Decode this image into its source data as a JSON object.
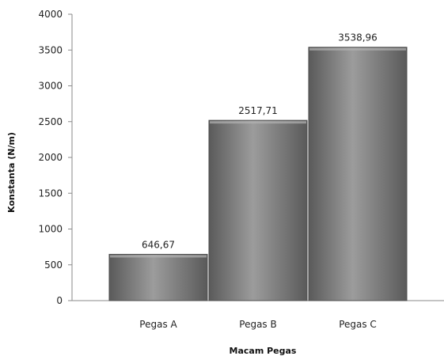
{
  "chart_data": {
    "type": "bar",
    "categories": [
      "Pegas A",
      "Pegas B",
      "Pegas C"
    ],
    "values": [
      646.67,
      2517.71,
      3538.96
    ],
    "data_labels": [
      "646,67",
      "2517,71",
      "3538,96"
    ],
    "title": "",
    "xlabel": "Macam Pegas",
    "ylabel": "Konstanta  (N/m)",
    "ylim": [
      0,
      4000
    ],
    "yticks": [
      0,
      500,
      1000,
      1500,
      2000,
      2500,
      3000,
      3500,
      4000
    ],
    "grid": false,
    "legend": "none",
    "bar_color": "#7a7a7a",
    "bar_highlight_color": "#9c9c9c",
    "bar_shadow_color": "#5a5a5a"
  }
}
